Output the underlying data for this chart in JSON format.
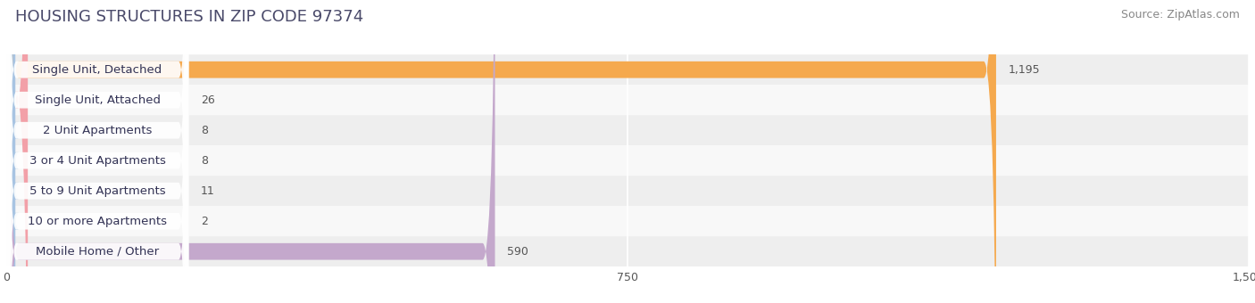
{
  "title": "HOUSING STRUCTURES IN ZIP CODE 97374",
  "source": "Source: ZipAtlas.com",
  "categories": [
    "Single Unit, Detached",
    "Single Unit, Attached",
    "2 Unit Apartments",
    "3 or 4 Unit Apartments",
    "5 to 9 Unit Apartments",
    "10 or more Apartments",
    "Mobile Home / Other"
  ],
  "values": [
    1195,
    26,
    8,
    8,
    11,
    2,
    590
  ],
  "bar_colors": [
    "#F5A94E",
    "#F2A0A8",
    "#A8C4E2",
    "#A8C4E2",
    "#A8C4E2",
    "#A8C4E2",
    "#C4A8CC"
  ],
  "row_bg_even": "#eeeeee",
  "row_bg_odd": "#f8f8f8",
  "xlim_min": 0,
  "xlim_max": 1500,
  "xticks": [
    0,
    750,
    1500
  ],
  "xtick_labels": [
    "0",
    "750",
    "1,500"
  ],
  "title_fontsize": 13,
  "source_fontsize": 9,
  "label_fontsize": 9.5,
  "value_fontsize": 9,
  "tick_fontsize": 9,
  "fig_bg": "#ffffff",
  "title_color": "#4a4a6a",
  "source_color": "#888888"
}
